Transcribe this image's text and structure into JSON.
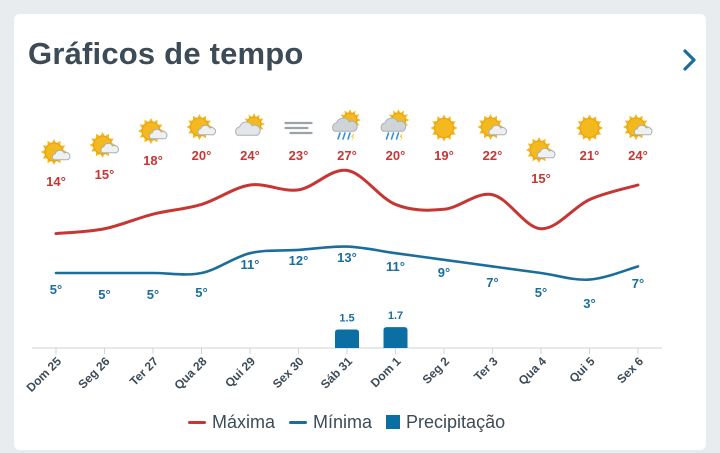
{
  "header": {
    "title": "Gráficos de tempo",
    "next_icon": "chevron-right-icon"
  },
  "legend": {
    "max_label": "Máxima",
    "min_label": "Mínima",
    "precip_label": "Precipitação"
  },
  "colors": {
    "max": "#c63633",
    "min": "#1b6e9a",
    "precip": "#0c6fa3"
  },
  "chart_data": {
    "type": "line",
    "categories": [
      "Dom 25",
      "Seg 26",
      "Ter 27",
      "Qua 28",
      "Qui 29",
      "Sex 30",
      "Sáb 31",
      "Dom 1",
      "Seg 2",
      "Ter 3",
      "Qua 4",
      "Qui 5",
      "Sex 6"
    ],
    "icons": [
      "partly-sunny",
      "partly-sunny",
      "partly-sunny",
      "partly-sunny",
      "partly-cloudy",
      "fog",
      "thunderstorm-rain",
      "thunderstorm-rain",
      "sunny",
      "partly-sunny",
      "partly-sunny",
      "sunny",
      "partly-sunny"
    ],
    "series": [
      {
        "name": "Máxima",
        "unit": "°",
        "values": [
          14,
          15,
          18,
          20,
          24,
          23,
          27,
          20,
          19,
          22,
          15,
          21,
          24
        ]
      },
      {
        "name": "Mínima",
        "unit": "°",
        "values": [
          5,
          5,
          5,
          5,
          11,
          12,
          13,
          11,
          9,
          7,
          5,
          3,
          7
        ]
      },
      {
        "name": "Precipitação",
        "values": [
          null,
          null,
          null,
          null,
          null,
          null,
          1.5,
          1.7,
          null,
          null,
          null,
          null,
          null
        ]
      }
    ],
    "legend_position": "bottom",
    "grid": false
  }
}
